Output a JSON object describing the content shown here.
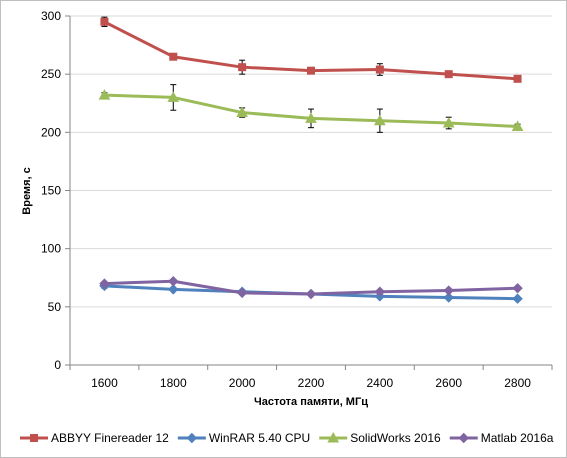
{
  "chart_data": {
    "type": "line",
    "title": "",
    "xlabel": "Частота  памяти,  МГц",
    "ylabel": "Время, с",
    "x": [
      1600,
      1800,
      2000,
      2200,
      2400,
      2600,
      2800
    ],
    "x_tick_labels": [
      "1600",
      "1800",
      "2000",
      "2200",
      "2400",
      "2600",
      "2800"
    ],
    "ylim": [
      0,
      300
    ],
    "y_ticks": [
      0,
      50,
      100,
      150,
      200,
      250,
      300
    ],
    "y_tick_labels": [
      "0",
      "50",
      "100",
      "150",
      "200",
      "250",
      "300"
    ],
    "grid": "horizontal",
    "legend_position": "bottom",
    "series": [
      {
        "name": "ABBYY Finereader 12",
        "color": "#c0504d",
        "marker": "square",
        "values": [
          295,
          265,
          256,
          253,
          254,
          250,
          246
        ],
        "errors": [
          4,
          2,
          6,
          2,
          5,
          2,
          2
        ]
      },
      {
        "name": "WinRAR 5.40 CPU",
        "color": "#4f81bd",
        "marker": "diamond",
        "values": [
          68,
          65,
          63,
          61,
          59,
          58,
          57
        ],
        "errors": [
          2,
          1,
          1,
          1,
          1,
          1,
          1
        ]
      },
      {
        "name": "SolidWorks 2016",
        "color": "#9bbb59",
        "marker": "triangle",
        "values": [
          232,
          230,
          217,
          212,
          210,
          208,
          205
        ],
        "errors": [
          2,
          11,
          4,
          8,
          10,
          5,
          2
        ]
      },
      {
        "name": "Matlab 2016a",
        "color": "#8064a2",
        "marker": "diamond",
        "values": [
          70,
          72,
          62,
          61,
          63,
          64,
          66
        ],
        "errors": [
          1,
          1,
          1,
          1,
          1,
          1,
          1
        ]
      }
    ]
  }
}
